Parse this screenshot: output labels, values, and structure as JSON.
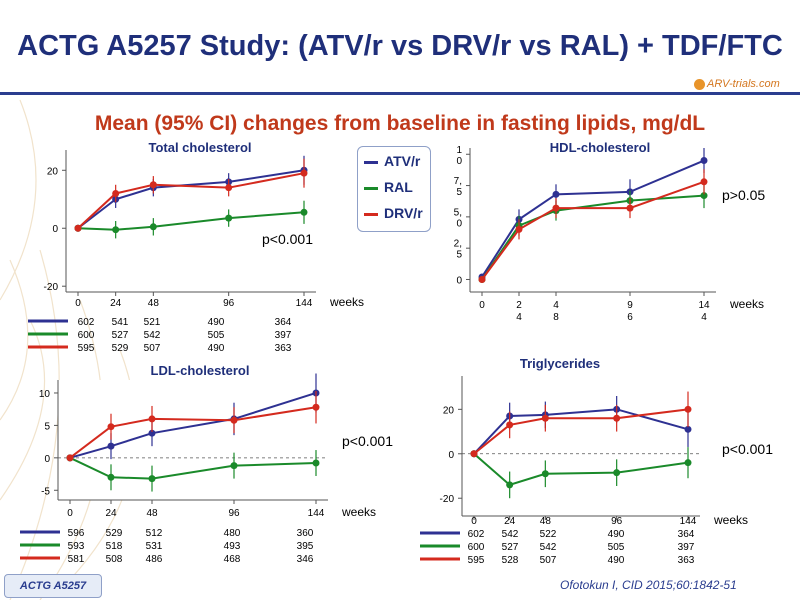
{
  "title": "ACTG A5257 Study: (ATV/r vs DRV/r vs RAL) + TDF/FTC",
  "subtitle": "Mean (95% CI) changes from baseline in fasting lipids, mg/dL",
  "logo": "ARV-trials.com",
  "badge": "ACTG A5257",
  "citation": "Ofotokun I, CID 2015;60:1842-51",
  "colors": {
    "ATV/r": "#2e3192",
    "RAL": "#1a8a2a",
    "DRV/r": "#d42a1e",
    "title": "#1f2f7a",
    "subtitle": "#c0391b"
  },
  "legend": [
    {
      "name": "ATV/r",
      "color": "#2e3192"
    },
    {
      "name": "RAL",
      "color": "#1a8a2a"
    },
    {
      "name": "DRV/r",
      "color": "#d42a1e"
    }
  ],
  "chart_data": [
    {
      "type": "line",
      "title": "Total cholesterol",
      "x_unit": "weeks",
      "x": [
        0,
        24,
        48,
        96,
        144
      ],
      "x_ticks": [
        "0",
        "24",
        "48",
        "96",
        "144"
      ],
      "ylim": [
        -22,
        27
      ],
      "y_ticks": [
        "20",
        "0",
        "-20"
      ],
      "y_tick_values": [
        20,
        0,
        -20
      ],
      "p_value": "p<0.001",
      "series": [
        {
          "name": "ATV/r",
          "values": [
            0,
            10,
            14,
            16,
            20
          ],
          "ci": [
            0,
            3,
            3,
            3,
            5
          ]
        },
        {
          "name": "RAL",
          "values": [
            0,
            -0.5,
            0.5,
            3.5,
            5.5
          ],
          "ci": [
            0,
            3,
            3,
            3,
            4
          ]
        },
        {
          "name": "DRV/r",
          "values": [
            0,
            12,
            15,
            14,
            19
          ],
          "ci": [
            0,
            3,
            3,
            3,
            5
          ]
        }
      ],
      "n_at_risk": [
        {
          "name": "ATV/r",
          "values": [
            "602",
            "541",
            "521",
            "490",
            "364"
          ]
        },
        {
          "name": "RAL",
          "values": [
            "600",
            "527",
            "542",
            "505",
            "397"
          ]
        },
        {
          "name": "DRV/r",
          "values": [
            "595",
            "529",
            "507",
            "490",
            "363"
          ]
        }
      ]
    },
    {
      "type": "line",
      "title": "HDL-cholesterol",
      "x_unit": "weeks",
      "x": [
        0,
        24,
        48,
        96,
        144
      ],
      "x_ticks": [
        "0",
        "2\n4",
        "4\n8",
        "9\n6",
        "14\n4"
      ],
      "ylim": [
        -1,
        10.5
      ],
      "y_ticks": [
        "1\n0",
        "7,\n5",
        "5,\n0",
        "2,\n5",
        "0"
      ],
      "y_tick_values": [
        10,
        7.5,
        5,
        2.5,
        0
      ],
      "p_value": "p>0.05",
      "series": [
        {
          "name": "ATV/r",
          "values": [
            0.2,
            4.8,
            6.8,
            7.0,
            9.5
          ],
          "ci": [
            0,
            0.8,
            0.8,
            1.0,
            1.0
          ]
        },
        {
          "name": "RAL",
          "values": [
            0,
            4.3,
            5.5,
            6.3,
            6.7
          ],
          "ci": [
            0,
            0.8,
            0.8,
            0.8,
            1.0
          ]
        },
        {
          "name": "DRV/r",
          "values": [
            0,
            4.0,
            5.7,
            5.7,
            7.8
          ],
          "ci": [
            0,
            0.8,
            0.8,
            0.8,
            1.0
          ]
        }
      ]
    },
    {
      "type": "line",
      "title": "LDL-cholesterol",
      "x_unit": "weeks",
      "x": [
        0,
        24,
        48,
        96,
        144
      ],
      "x_ticks": [
        "0",
        "24",
        "48",
        "96",
        "144"
      ],
      "ylim": [
        -6.5,
        12
      ],
      "y_ticks": [
        "10",
        "5",
        "0",
        "-5"
      ],
      "y_tick_values": [
        10,
        5,
        0,
        -5
      ],
      "p_value": "p<0.001",
      "series": [
        {
          "name": "ATV/r",
          "values": [
            0,
            1.8,
            3.8,
            6.0,
            10.0
          ],
          "ci": [
            0,
            2,
            2,
            2.5,
            3
          ]
        },
        {
          "name": "RAL",
          "values": [
            0,
            -3.0,
            -3.2,
            -1.2,
            -0.8
          ],
          "ci": [
            0,
            2,
            2,
            2,
            2
          ]
        },
        {
          "name": "DRV/r",
          "values": [
            0,
            4.8,
            6.0,
            5.8,
            7.8
          ],
          "ci": [
            0,
            2,
            2,
            2,
            2.5
          ]
        }
      ],
      "n_at_risk": [
        {
          "name": "ATV/r",
          "values": [
            "596",
            "529",
            "512",
            "480",
            "360"
          ]
        },
        {
          "name": "RAL",
          "values": [
            "593",
            "518",
            "531",
            "493",
            "395"
          ]
        },
        {
          "name": "DRV/r",
          "values": [
            "581",
            "508",
            "486",
            "468",
            "346"
          ]
        }
      ]
    },
    {
      "type": "line",
      "title": "Triglycerides",
      "x_unit": "weeks",
      "x": [
        0,
        24,
        48,
        96,
        144
      ],
      "x_ticks": [
        "0",
        "24",
        "48",
        "96",
        "144"
      ],
      "ylim": [
        -28,
        35
      ],
      "y_ticks": [
        "20",
        "0",
        "-20"
      ],
      "y_tick_values": [
        20,
        0,
        -20
      ],
      "p_value": "p<0.001",
      "series": [
        {
          "name": "ATV/r",
          "values": [
            0,
            17,
            17.5,
            20,
            11
          ],
          "ci": [
            0,
            6,
            6,
            6,
            8
          ]
        },
        {
          "name": "RAL",
          "values": [
            0,
            -14,
            -9,
            -8.5,
            -4
          ],
          "ci": [
            0,
            6,
            6,
            6,
            7
          ]
        },
        {
          "name": "DRV/r",
          "values": [
            0,
            13,
            16,
            16,
            20
          ],
          "ci": [
            0,
            6,
            6,
            6,
            8
          ]
        }
      ],
      "n_at_risk": [
        {
          "name": "ATV/r",
          "values": [
            "602",
            "542",
            "522",
            "490",
            "364"
          ]
        },
        {
          "name": "RAL",
          "values": [
            "600",
            "527",
            "542",
            "505",
            "397"
          ]
        },
        {
          "name": "DRV/r",
          "values": [
            "595",
            "528",
            "507",
            "490",
            "363"
          ]
        }
      ]
    }
  ]
}
